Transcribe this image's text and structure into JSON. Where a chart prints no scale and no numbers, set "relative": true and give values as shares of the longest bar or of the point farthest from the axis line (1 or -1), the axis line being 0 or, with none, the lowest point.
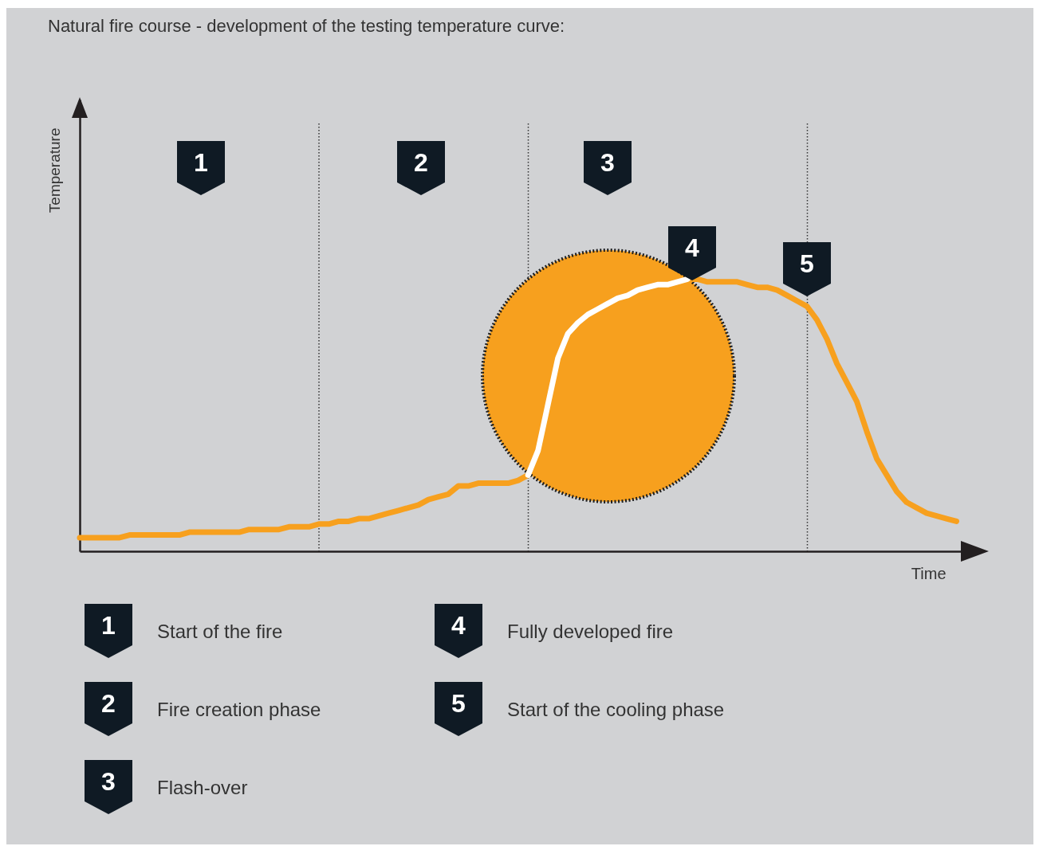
{
  "chart_data": {
    "type": "line",
    "relative": true,
    "tick_labels": false,
    "grid": "x",
    "title": "Natural fire course - development of the testing temperature curve:",
    "xlabel": "Time",
    "ylabel": "Temperature",
    "categories": [
      null,
      null,
      null,
      null,
      null,
      null,
      null,
      null,
      null,
      null,
      null,
      null,
      null,
      null,
      null,
      null,
      null,
      null,
      null,
      null,
      null,
      null,
      null,
      null,
      null,
      null,
      null,
      null,
      null,
      null,
      null,
      null,
      null,
      null,
      null,
      null,
      null,
      null,
      null,
      null,
      null,
      null,
      null,
      null,
      null,
      null,
      null,
      null,
      null,
      null,
      null,
      null,
      null,
      null,
      null,
      null,
      null,
      null,
      null,
      null,
      null,
      null,
      null,
      null,
      null,
      null,
      null,
      null,
      null,
      null,
      null,
      null,
      null,
      null,
      null,
      null,
      null,
      null,
      null,
      null,
      null,
      null,
      null,
      null,
      null,
      null,
      null,
      null,
      null,
      null
    ],
    "series": [
      {
        "color": "#f7a01e",
        "values": [
          0.05,
          0.05,
          0.05,
          0.05,
          0.05,
          0.06,
          0.06,
          0.06,
          0.06,
          0.06,
          0.06,
          0.07,
          0.07,
          0.07,
          0.07,
          0.07,
          0.07,
          0.08,
          0.08,
          0.08,
          0.08,
          0.09,
          0.09,
          0.09,
          0.1,
          0.1,
          0.11,
          0.11,
          0.12,
          0.12,
          0.13,
          0.14,
          0.15,
          0.16,
          0.17,
          0.19,
          0.2,
          0.21,
          0.24,
          0.24,
          0.25,
          0.25,
          0.25,
          0.25,
          0.26,
          0.28,
          0.37,
          0.54,
          0.71,
          0.8,
          0.84,
          0.87,
          0.89,
          0.91,
          0.93,
          0.94,
          0.96,
          0.97,
          0.98,
          0.98,
          0.99,
          1,
          1,
          0.99,
          0.99,
          0.99,
          0.99,
          0.98,
          0.97,
          0.97,
          0.96,
          0.94,
          0.92,
          0.9,
          0.85,
          0.78,
          0.69,
          0.62,
          0.55,
          0.44,
          0.34,
          0.28,
          0.22,
          0.18,
          0.16,
          0.14,
          0.13,
          0.12,
          0.11,
          null
        ]
      },
      {
        "color": "#ffffff",
        "values": [
          null,
          null,
          null,
          null,
          null,
          null,
          null,
          null,
          null,
          null,
          null,
          null,
          null,
          null,
          null,
          null,
          null,
          null,
          null,
          null,
          null,
          null,
          null,
          null,
          null,
          null,
          null,
          null,
          null,
          null,
          null,
          null,
          null,
          null,
          null,
          null,
          null,
          null,
          null,
          null,
          null,
          null,
          null,
          null,
          null,
          0.28,
          0.37,
          0.54,
          0.71,
          0.8,
          0.84,
          0.87,
          0.89,
          0.91,
          0.93,
          0.94,
          0.96,
          0.97,
          0.98,
          0.98,
          0.99,
          1,
          null,
          null,
          null,
          null,
          null,
          null,
          null,
          null,
          null,
          null,
          null,
          null,
          null,
          null,
          null,
          null,
          null,
          null,
          null,
          null,
          null,
          null,
          null,
          null,
          null,
          null,
          null,
          null
        ]
      }
    ],
    "annotations": [
      "1",
      "2",
      "3",
      "4",
      "5",
      "Start of the fire",
      "Fire creation phase",
      "Flash-over",
      "Fully developed fire",
      "Start of the cooling phase"
    ]
  }
}
